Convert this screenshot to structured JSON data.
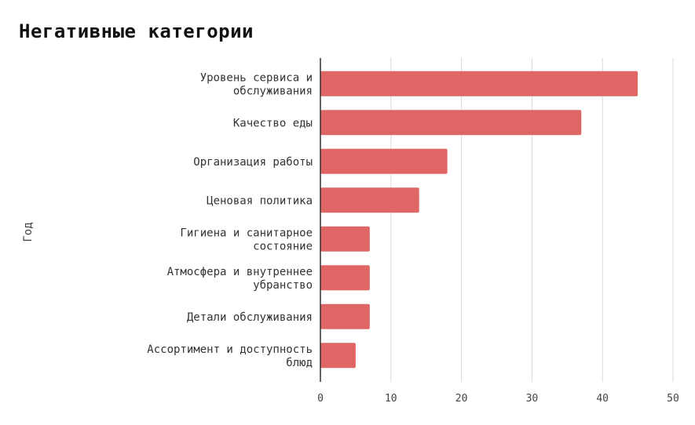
{
  "chart_data": {
    "type": "bar",
    "orientation": "horizontal",
    "title": "Негативные категории",
    "ylabel": "Год",
    "xlabel": "",
    "categories": [
      [
        "Уровень сервиса и",
        "обслуживания"
      ],
      [
        "Качество еды"
      ],
      [
        "Организация работы"
      ],
      [
        "Ценовая политика"
      ],
      [
        "Гигиена и санитарное",
        "состояние"
      ],
      [
        "Атмосфера и внутреннее",
        "убранство"
      ],
      [
        "Детали обслуживания"
      ],
      [
        "Ассортимент и доступность",
        "блюд"
      ]
    ],
    "values": [
      45,
      37,
      18,
      14,
      7,
      7,
      7,
      5
    ],
    "xlim": [
      0,
      50
    ],
    "xticks": [
      "0",
      "10",
      "20",
      "30",
      "40",
      "50"
    ],
    "grid": "vertical",
    "legend": "none",
    "bar_color": "#e06666"
  }
}
